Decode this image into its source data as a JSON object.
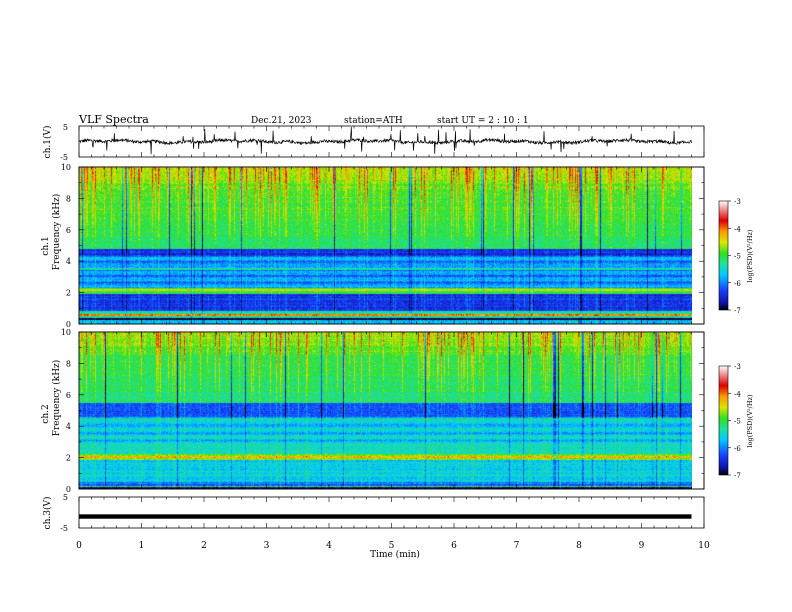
{
  "header": {
    "title": "VLF  Spectra",
    "date": "Dec.21, 2023",
    "station": "station=ATH",
    "start": "start  UT  =   2  : 10 : 1"
  },
  "colors": {
    "scale": [
      "#000000",
      "#1010a0",
      "#1840ff",
      "#00c8ff",
      "#20e0a0",
      "#30e020",
      "#d8e800",
      "#ff9800",
      "#e00000",
      "#ffffff"
    ]
  },
  "chart_data": [
    {
      "id": "ch1_waveform",
      "type": "line",
      "ylabel": "ch.1(V)",
      "ylim": [
        -5,
        5
      ],
      "yticks": [
        "5",
        "-5"
      ],
      "xlim": [
        0,
        10
      ],
      "description_values": "waveform amplitude approx -1 to 1 V with spikes"
    },
    {
      "id": "ch1_spectrogram",
      "type": "heatmap",
      "ylabel_top": "ch.1",
      "ylabel": "Frequency  (kHz)",
      "ylim": [
        0,
        10
      ],
      "yticks": [
        "0",
        "2",
        "4",
        "6",
        "8",
        "10"
      ],
      "xlim": [
        0,
        9.8
      ],
      "colorbar": {
        "label": "log(PSD)(V²/Hz)",
        "range": [
          -7,
          -3
        ],
        "ticks": [
          "-3",
          "-4",
          "-5",
          "-6",
          "-7"
        ]
      }
    },
    {
      "id": "ch2_spectrogram",
      "type": "heatmap",
      "ylabel_top": "ch.2",
      "ylabel": "Frequency  (kHz)",
      "ylim": [
        0,
        10
      ],
      "yticks": [
        "0",
        "2",
        "4",
        "6",
        "8",
        "10"
      ],
      "xlim": [
        0,
        9.8
      ],
      "colorbar": {
        "label": "log(PSD)(V²/Hz)",
        "range": [
          -7,
          -3
        ],
        "ticks": [
          "-3",
          "-4",
          "-5",
          "-6",
          "-7"
        ]
      }
    },
    {
      "id": "ch3_waveform",
      "type": "line",
      "ylabel": "ch.3(V)",
      "ylim": [
        -5,
        5
      ],
      "yticks": [
        "5",
        "-5"
      ],
      "xlim": [
        0,
        10
      ],
      "level": -1.3
    }
  ],
  "xaxis": {
    "label": "Time  (min)",
    "ticks": [
      "0",
      "1",
      "2",
      "3",
      "4",
      "5",
      "6",
      "7",
      "8",
      "9",
      "10"
    ]
  }
}
